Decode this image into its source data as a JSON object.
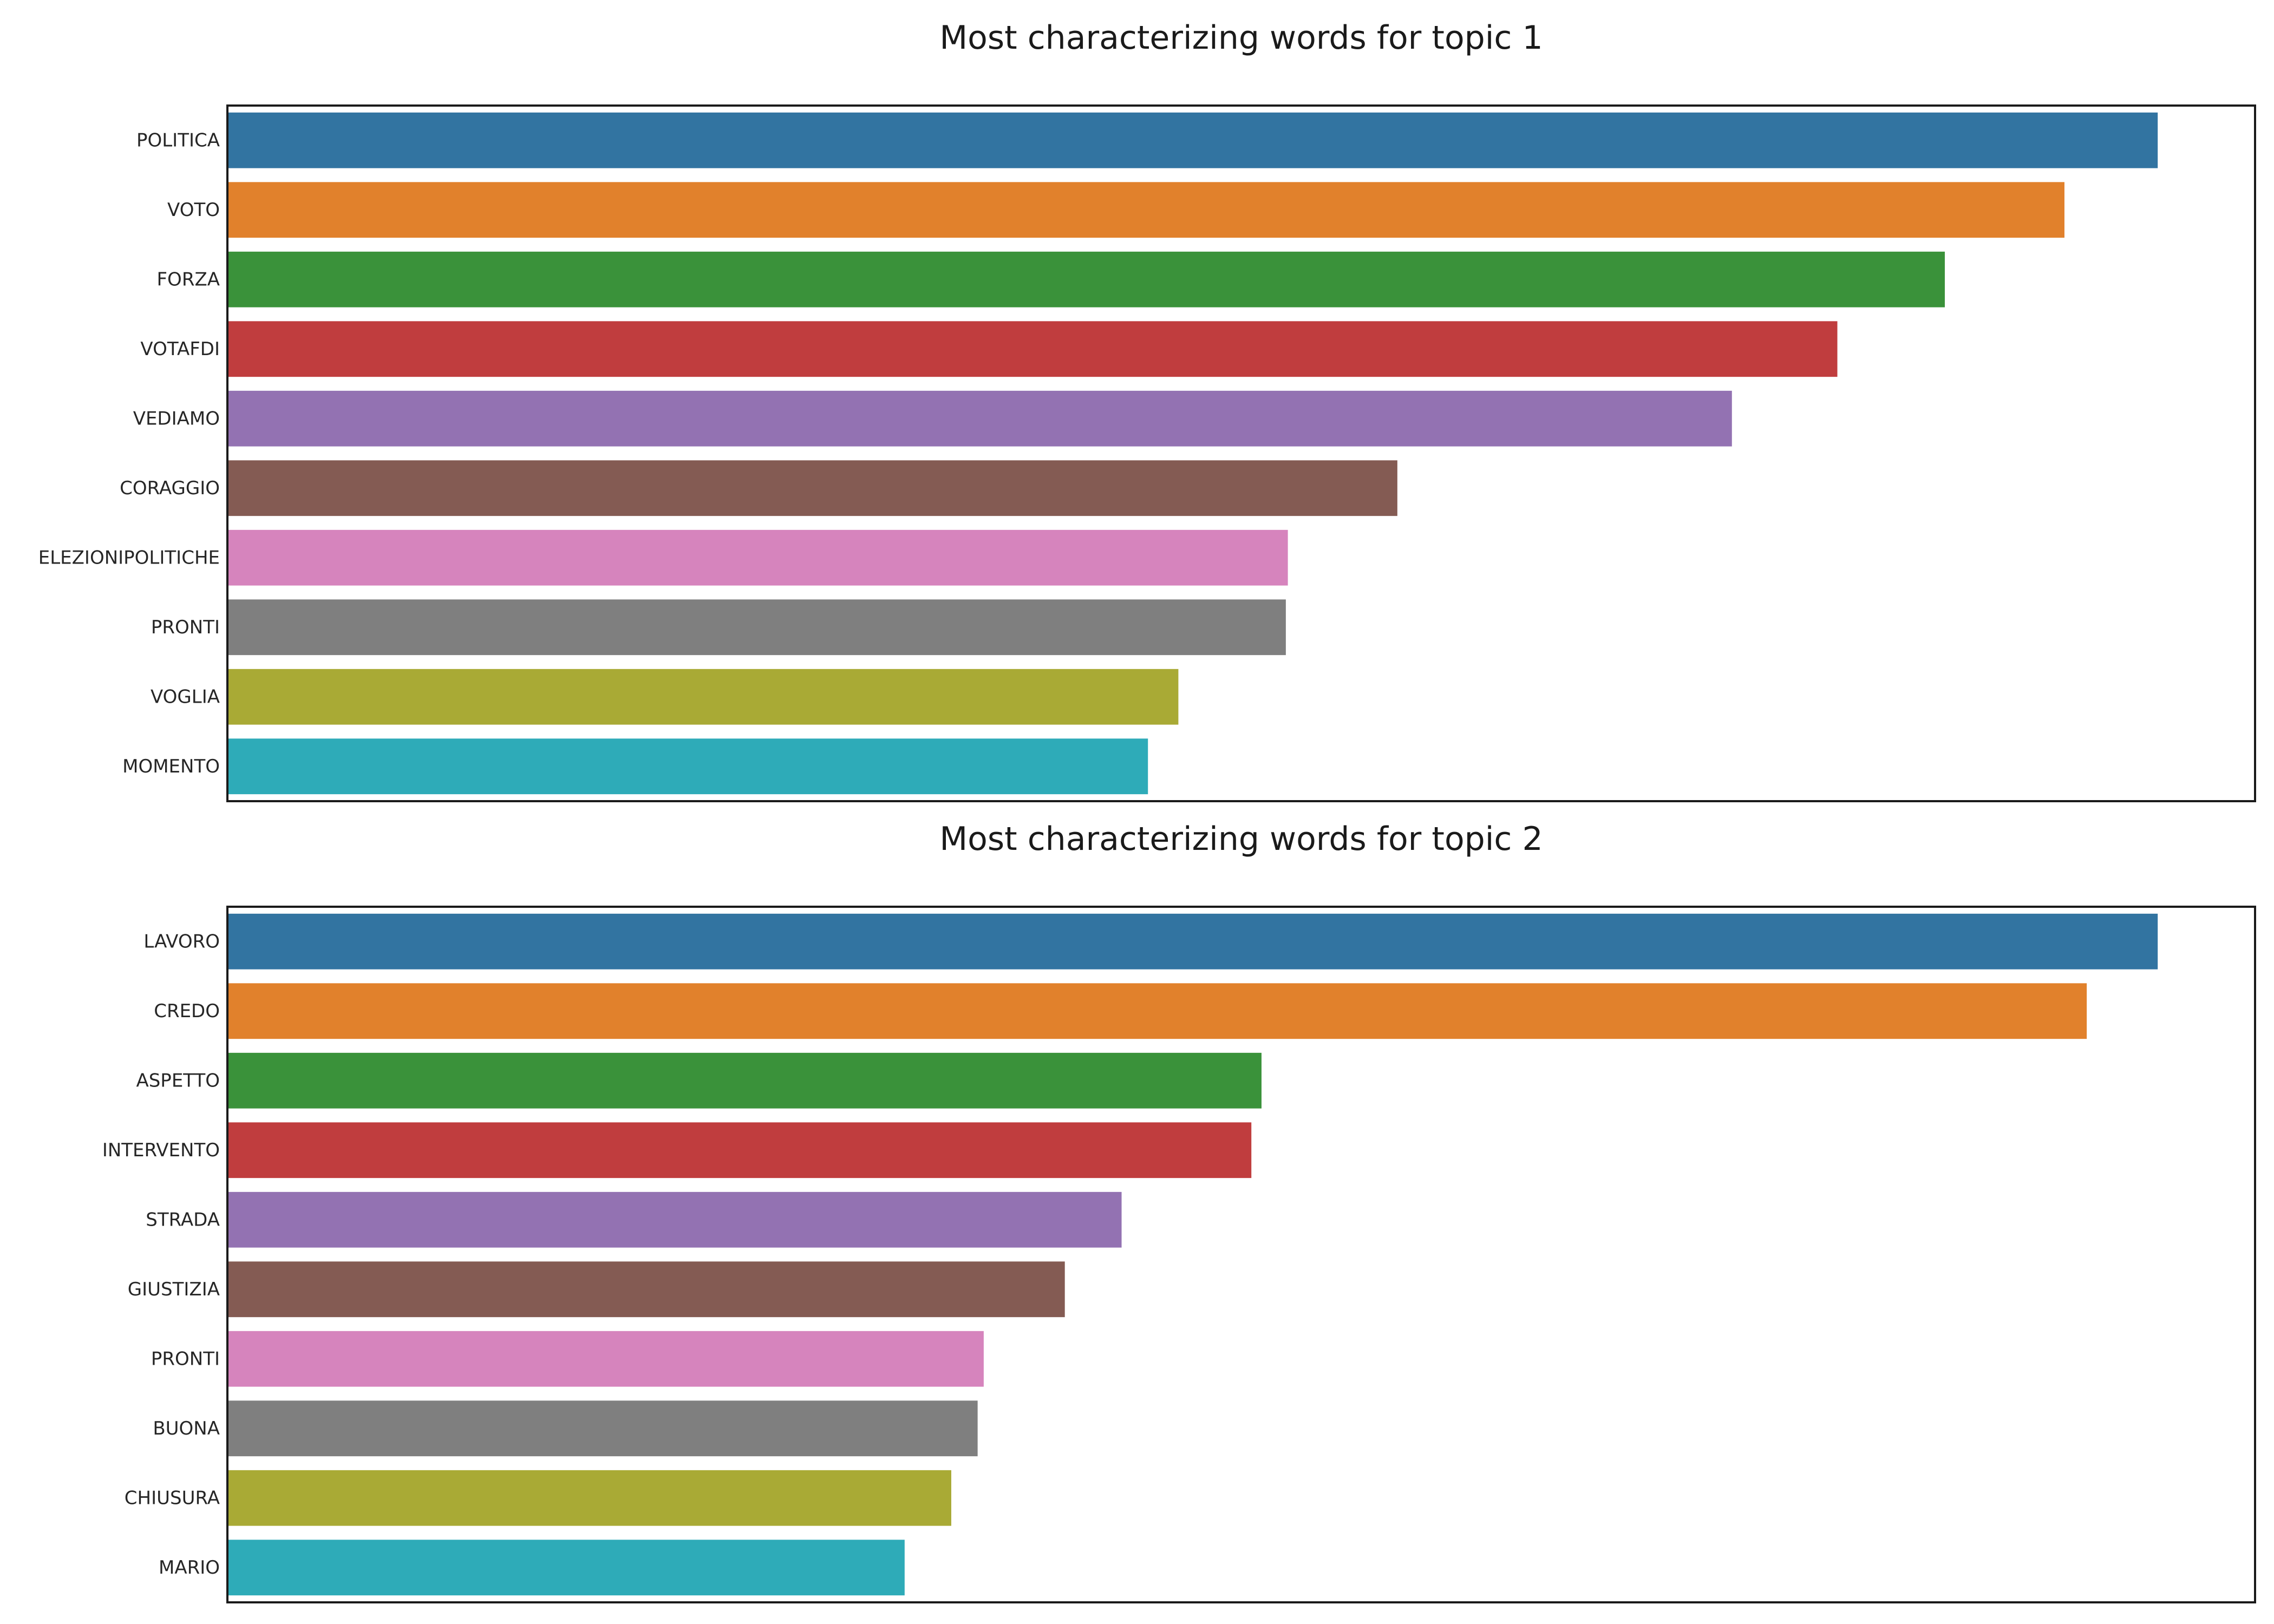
{
  "chart_data": [
    {
      "type": "bar",
      "orientation": "horizontal",
      "title": "Most characterizing words for topic 1",
      "xlabel": "",
      "ylabel": "",
      "categories": [
        "POLITICA",
        "VOTO",
        "FORZA",
        "VOTAFDI",
        "VEDIAMO",
        "CORAGGIO",
        "ELEZIONIPOLITICHE",
        "PRONTI",
        "VOGLIA",
        "MOMENTO"
      ],
      "values": [
        0.952,
        0.906,
        0.847,
        0.794,
        0.742,
        0.577,
        0.523,
        0.522,
        0.469,
        0.454
      ],
      "xlim": [
        0,
        1.0
      ],
      "x_ticks_visible": false,
      "grid": false,
      "colors": [
        "#3274a1",
        "#e1812c",
        "#3a923a",
        "#c03d3e",
        "#9372b2",
        "#845b53",
        "#d684bd",
        "#7f7f7f",
        "#a9aa35",
        "#2eabb8"
      ]
    },
    {
      "type": "bar",
      "orientation": "horizontal",
      "title": "Most characterizing words for topic 2",
      "xlabel": "",
      "ylabel": "",
      "categories": [
        "LAVORO",
        "CREDO",
        "ASPETTO",
        "INTERVENTO",
        "STRADA",
        "GIUSTIZIA",
        "PRONTI",
        "BUONA",
        "CHIUSURA",
        "MARIO"
      ],
      "values": [
        0.952,
        0.917,
        0.51,
        0.505,
        0.441,
        0.413,
        0.373,
        0.37,
        0.357,
        0.334
      ],
      "xlim": [
        0,
        1.0
      ],
      "x_ticks_visible": false,
      "grid": false,
      "colors": [
        "#3274a1",
        "#e1812c",
        "#3a923a",
        "#c03d3e",
        "#9372b2",
        "#845b53",
        "#d684bd",
        "#7f7f7f",
        "#a9aa35",
        "#2eabb8"
      ]
    }
  ]
}
